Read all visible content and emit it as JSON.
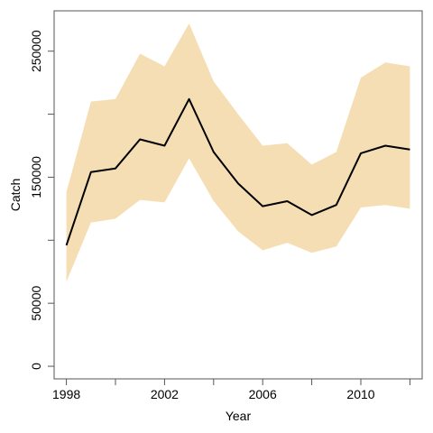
{
  "chart_data": {
    "type": "line",
    "title": "",
    "xlabel": "Year",
    "ylabel": "Catch",
    "x": [
      1998,
      1999,
      2000,
      2001,
      2002,
      2003,
      2004,
      2005,
      2006,
      2007,
      2008,
      2009,
      2010,
      2011,
      2012
    ],
    "xlim": [
      1997.5,
      2012.5
    ],
    "ylim": [
      -10000,
      282000
    ],
    "x_ticks": [
      1998,
      2000,
      2002,
      2004,
      2006,
      2008,
      2010,
      2012
    ],
    "x_tick_labels": [
      "1998",
      "",
      "2002",
      "",
      "2006",
      "",
      "2010",
      ""
    ],
    "y_ticks": [
      0,
      50000,
      100000,
      150000,
      200000,
      250000
    ],
    "y_tick_labels": [
      "0",
      "50000",
      "",
      "150000",
      "",
      "250000"
    ],
    "grid": false,
    "legend": "none",
    "series": [
      {
        "values": [
          96000,
          154000,
          157000,
          180000,
          175000,
          212000,
          170000,
          145000,
          127000,
          131000,
          120000,
          128000,
          169000,
          175000,
          172000
        ],
        "color": "#000000",
        "style": "line"
      }
    ],
    "band": {
      "lower": [
        67000,
        114000,
        117000,
        132000,
        130000,
        165000,
        131000,
        107000,
        92000,
        98000,
        90000,
        95000,
        126000,
        128000,
        125000
      ],
      "upper": [
        138000,
        210000,
        212000,
        248000,
        238000,
        272000,
        226000,
        200000,
        175000,
        177000,
        160000,
        170000,
        229000,
        241000,
        238000
      ],
      "color": "#f5deb3"
    }
  }
}
